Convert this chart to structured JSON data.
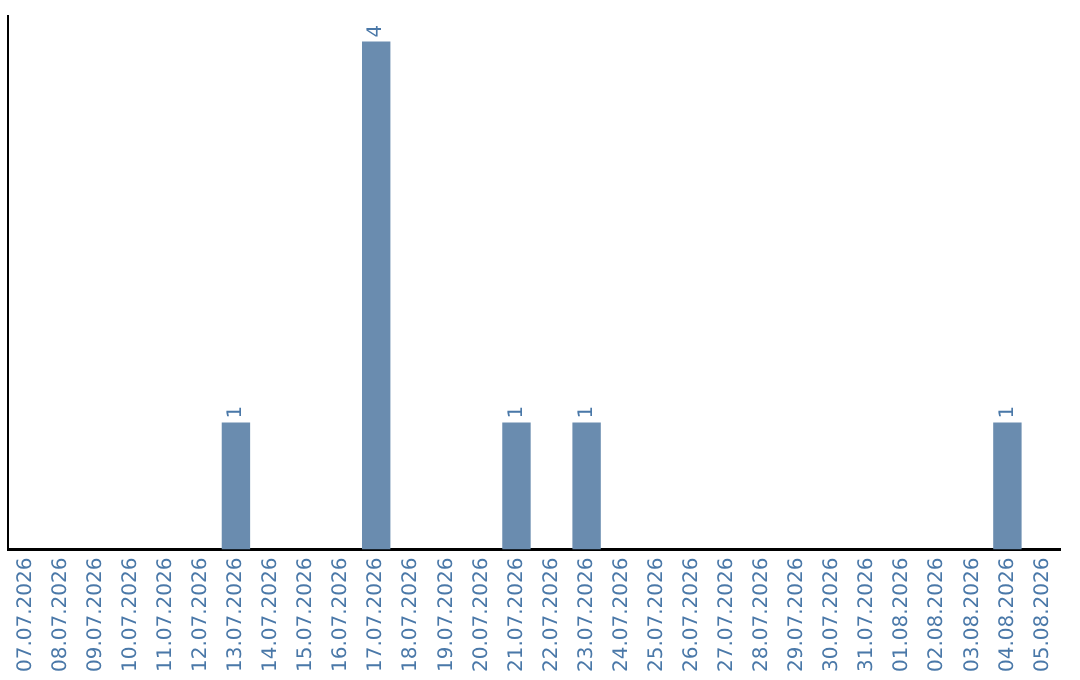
{
  "chart_data": {
    "type": "bar",
    "categories": [
      "07.07.2026",
      "08.07.2026",
      "09.07.2026",
      "10.07.2026",
      "11.07.2026",
      "12.07.2026",
      "13.07.2026",
      "14.07.2026",
      "15.07.2026",
      "16.07.2026",
      "17.07.2026",
      "18.07.2026",
      "19.07.2026",
      "20.07.2026",
      "21.07.2026",
      "22.07.2026",
      "23.07.2026",
      "24.07.2026",
      "25.07.2026",
      "26.07.2026",
      "27.07.2026",
      "28.07.2026",
      "29.07.2026",
      "30.07.2026",
      "31.07.2026",
      "01.08.2026",
      "02.08.2026",
      "03.08.2026",
      "04.08.2026",
      "05.08.2026"
    ],
    "values": [
      0,
      0,
      0,
      0,
      0,
      0,
      1,
      0,
      0,
      0,
      4,
      0,
      0,
      0,
      1,
      0,
      1,
      0,
      0,
      0,
      0,
      0,
      0,
      0,
      0,
      0,
      0,
      0,
      1,
      0
    ],
    "value_labels": [
      null,
      null,
      null,
      null,
      null,
      null,
      "1",
      null,
      null,
      null,
      "4",
      null,
      null,
      null,
      "1",
      null,
      "1",
      null,
      null,
      null,
      null,
      null,
      null,
      null,
      null,
      null,
      null,
      null,
      "1",
      null
    ],
    "color": "#6a8caf",
    "ylim": [
      0,
      4.2
    ],
    "tick_labels": "x",
    "grid": false,
    "legend": false
  }
}
